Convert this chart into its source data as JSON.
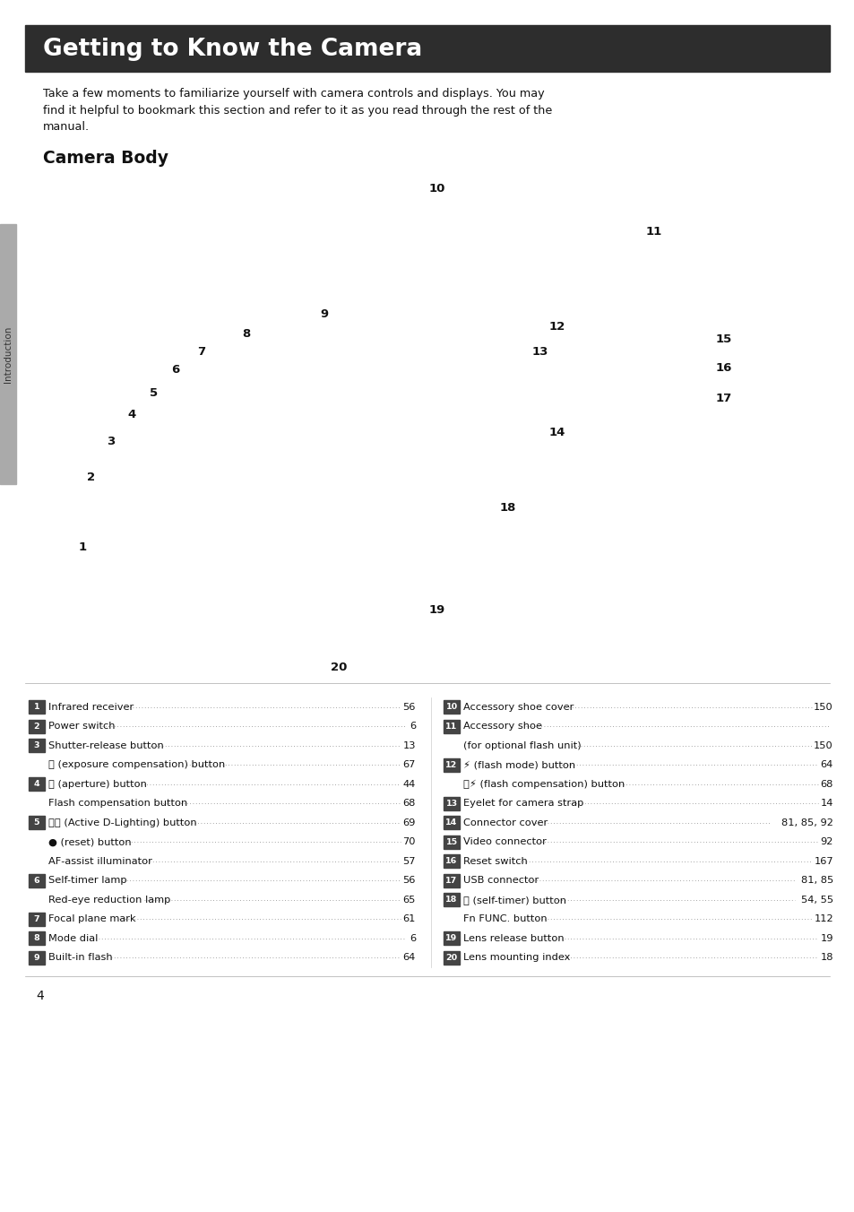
{
  "page_bg": "#ffffff",
  "header_bg": "#2d2d2d",
  "header_text": "Getting to Know the Camera",
  "header_text_color": "#ffffff",
  "header_font_size": 19,
  "intro_text": "Take a few moments to familiarize yourself with camera controls and displays. You may\nfind it helpful to bookmark this section and refer to it as you read through the rest of the\nmanual.",
  "section_title": "Camera Body",
  "sidebar_text": "Introduction",
  "page_number": "4",
  "left_items": [
    {
      "num": "1",
      "text": "Infrared receiver",
      "page": "56",
      "indent": false
    },
    {
      "num": "2",
      "text": "Power switch",
      "page": "6",
      "indent": false
    },
    {
      "num": "3",
      "text": "Shutter-release button",
      "page": "13",
      "indent": false
    },
    {
      "num": "",
      "text": "ⓧ (exposure compensation) button",
      "page": "67",
      "indent": true
    },
    {
      "num": "4",
      "text": "Ⓧ (aperture) button",
      "page": "44",
      "indent": false
    },
    {
      "num": "",
      "text": "Flash compensation button",
      "page": "68",
      "indent": true
    },
    {
      "num": "5",
      "text": "ⓐⓓ (Active D-Lighting) button",
      "page": "69",
      "indent": false
    },
    {
      "num": "",
      "text": "● (reset) button",
      "page": "70",
      "indent": true
    },
    {
      "num": "",
      "text": "AF-assist illuminator",
      "page": "57",
      "indent": true
    },
    {
      "num": "6",
      "text": "Self-timer lamp",
      "page": "56",
      "indent": false
    },
    {
      "num": "",
      "text": "Red-eye reduction lamp",
      "page": "65",
      "indent": true
    },
    {
      "num": "7",
      "text": "Focal plane mark",
      "page": "61",
      "indent": false
    },
    {
      "num": "8",
      "text": "Mode dial",
      "page": "6",
      "indent": false
    },
    {
      "num": "9",
      "text": "Built-in flash",
      "page": "64",
      "indent": false
    }
  ],
  "right_items": [
    {
      "num": "10",
      "text": "Accessory shoe cover",
      "page": "150",
      "indent": false
    },
    {
      "num": "11",
      "text": "Accessory shoe",
      "page": "",
      "indent": false
    },
    {
      "num": "",
      "text": "(for optional flash unit)",
      "page": "150",
      "indent": true
    },
    {
      "num": "12",
      "text": "⚡ (flash mode) button",
      "page": "64",
      "indent": false
    },
    {
      "num": "",
      "text": "ⓧ⚡ (flash compensation) button",
      "page": "68",
      "indent": false
    },
    {
      "num": "13",
      "text": "Eyelet for camera strap",
      "page": "14",
      "indent": false
    },
    {
      "num": "14",
      "text": "Connector cover",
      "page": "81, 85, 92",
      "indent": false
    },
    {
      "num": "15",
      "text": "Video connector",
      "page": "92",
      "indent": false
    },
    {
      "num": "16",
      "text": "Reset switch",
      "page": "167",
      "indent": false
    },
    {
      "num": "17",
      "text": "USB connector",
      "page": "81, 85",
      "indent": false
    },
    {
      "num": "18",
      "text": "⌛ (self-timer) button",
      "page": "54, 55",
      "indent": false
    },
    {
      "num": "",
      "text": "Fn FUNC. button",
      "page": "112",
      "indent": false
    },
    {
      "num": "19",
      "text": "Lens release button",
      "page": "19",
      "indent": false
    },
    {
      "num": "20",
      "text": "Lens mounting index",
      "page": "18",
      "indent": false
    }
  ]
}
